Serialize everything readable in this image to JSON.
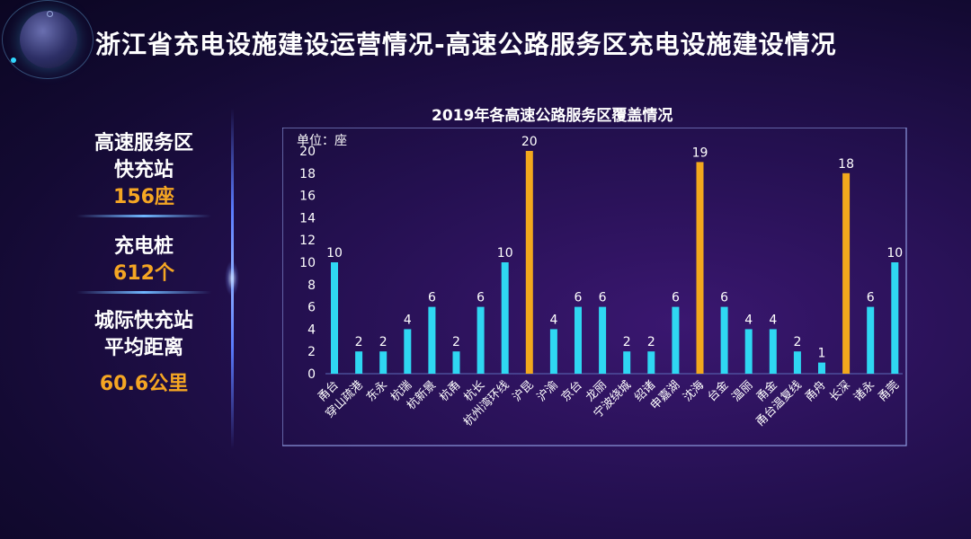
{
  "page_title": "浙江省充电设施建设运营情况-高速公路服务区充电设施建设情况",
  "stats": [
    {
      "label_lines": [
        "高速服务区",
        "快充站"
      ],
      "value": "156座"
    },
    {
      "label_lines": [
        "充电桩"
      ],
      "value": "612个"
    },
    {
      "label_lines": [
        "城际快充站",
        "平均距离"
      ],
      "value": "60.6公里"
    }
  ],
  "colors": {
    "normal": "#2fd7f2",
    "highlight": "#f2a81d",
    "value_highlight": "#f5a623"
  },
  "chart_data": {
    "type": "bar",
    "title": "2019年各高速公路服务区覆盖情况",
    "unit_label": "单位：座",
    "ylim": [
      0,
      20
    ],
    "yticks": [
      0,
      2,
      4,
      6,
      8,
      10,
      12,
      14,
      16,
      18,
      20
    ],
    "categories": [
      "甬台",
      "穿山疏港",
      "东永",
      "杭瑞",
      "杭新景",
      "杭甬",
      "杭长",
      "杭州湾环线",
      "沪昆",
      "沪渝",
      "京台",
      "龙丽",
      "宁波绕城",
      "绍诸",
      "申嘉湖",
      "沈海",
      "台金",
      "温丽",
      "甬金",
      "甬台温复线",
      "甬舟",
      "长深",
      "诸永",
      "甬莞"
    ],
    "values": [
      10,
      2,
      2,
      4,
      6,
      2,
      6,
      10,
      20,
      4,
      6,
      6,
      2,
      2,
      6,
      19,
      6,
      4,
      4,
      2,
      1,
      18,
      6,
      10
    ],
    "highlight": [
      false,
      false,
      false,
      false,
      false,
      false,
      false,
      false,
      true,
      false,
      false,
      false,
      false,
      false,
      false,
      true,
      false,
      false,
      false,
      false,
      false,
      true,
      false,
      false
    ]
  }
}
